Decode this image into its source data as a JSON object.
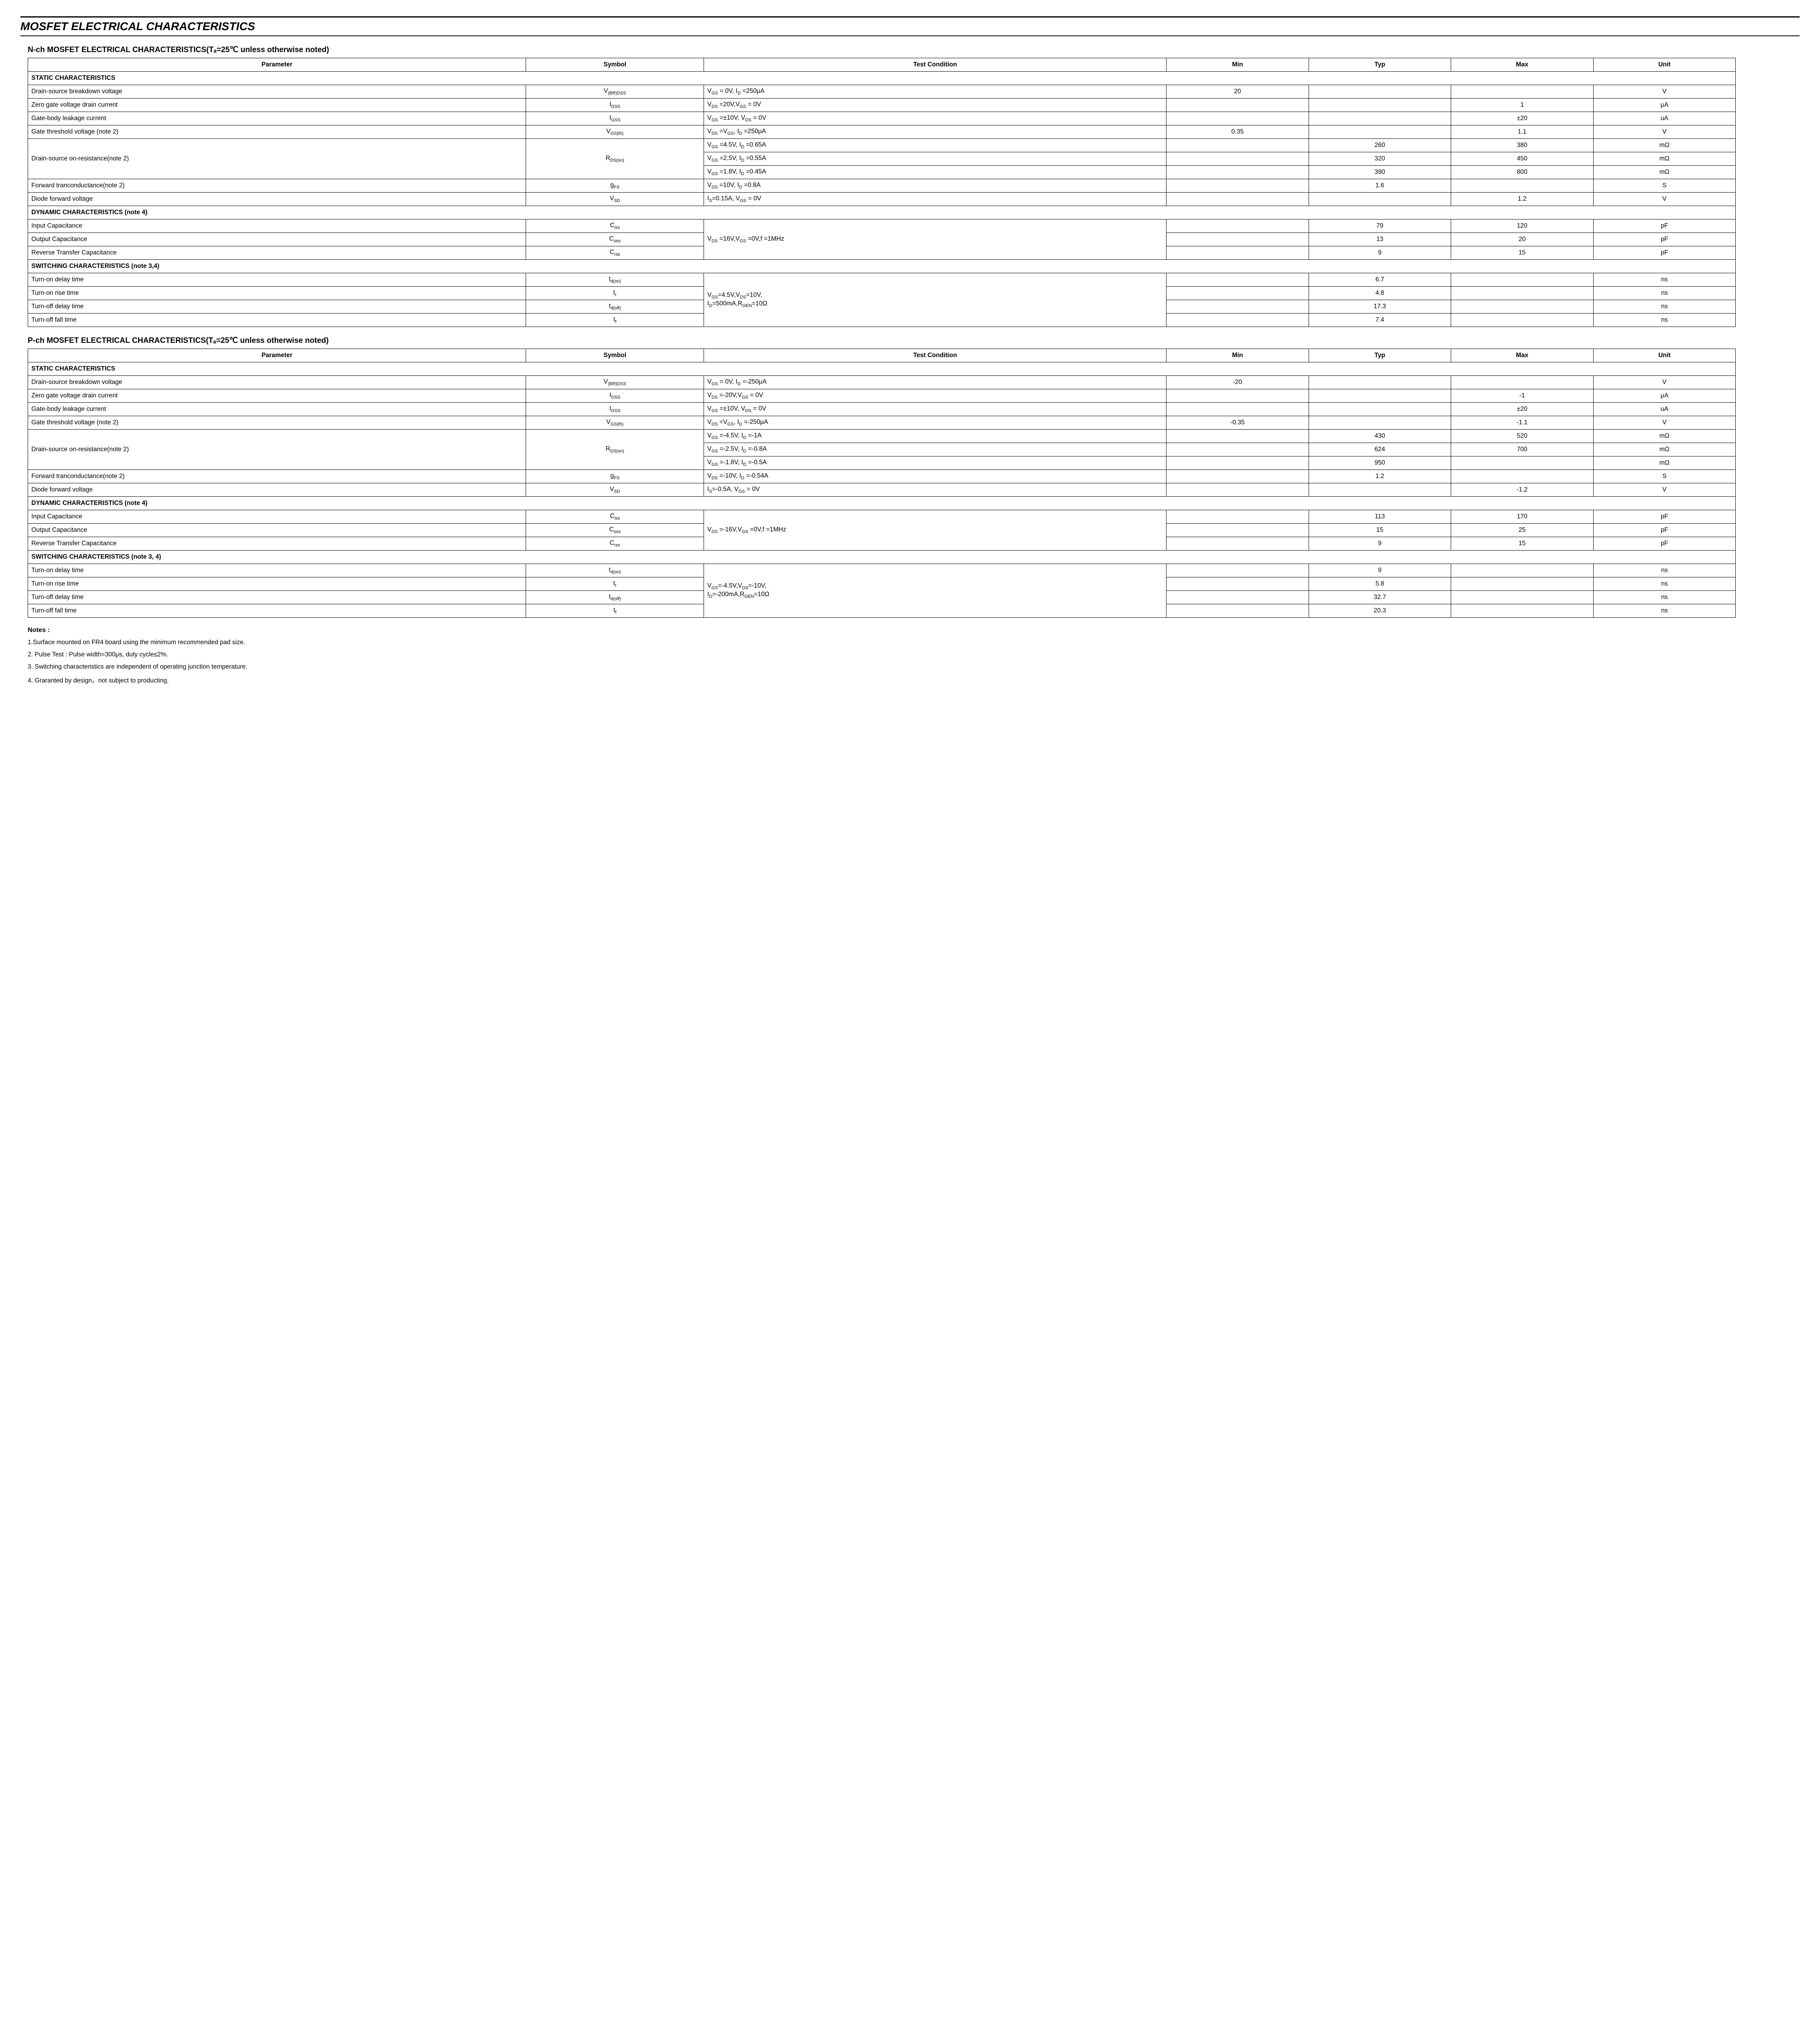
{
  "page_title": "MOSFET  ELECTRICAL CHARACTERISTICS",
  "nch_title": "N-ch MOSFET ELECTRICAL CHARACTERISTICS(Tₐ=25℃ unless otherwise noted)",
  "pch_title": "P-ch MOSFET ELECTRICAL CHARACTERISTICS(Tₐ=25℃ unless otherwise noted)",
  "headers": {
    "param": "Parameter",
    "symbol": "Symbol",
    "cond": "Test Condition",
    "min": "Min",
    "typ": "Typ",
    "max": "Max",
    "unit": "Unit"
  },
  "groups": {
    "static": "STATIC CHARACTERISTICS",
    "dynamic": "DYNAMIC CHARACTERISTICS (note 4)",
    "switching_n": "SWITCHING CHARACTERISTICS (note 3,4)",
    "switching_p": "SWITCHING CHARACTERISTICS (note 3, 4)"
  },
  "n": {
    "r1": {
      "p": "Drain-source breakdown voltage",
      "c": "V_GS = 0V, I_D =250μA",
      "min": "20",
      "typ": "",
      "max": "",
      "u": "V"
    },
    "r2": {
      "p": "Zero gate voltage drain current",
      "c": "V_DS =20V,V_GS = 0V",
      "min": "",
      "typ": "",
      "max": "1",
      "u": "μA"
    },
    "r3": {
      "p": "Gate-body leakage current",
      "c": "V_GS =±10V, V_DS = 0V",
      "min": "",
      "typ": "",
      "max": "±20",
      "u": "uA"
    },
    "r4": {
      "p": "Gate threshold voltage (note 2)",
      "c": "V_DS =V_GS, I_D =250μA",
      "min": "0.35",
      "typ": "",
      "max": "1.1",
      "u": "V"
    },
    "r5": {
      "p": "Drain-source on-resistance(note 2)",
      "c1": "V_GS =4.5V, I_D =0.65A",
      "c2": "V_GS =2.5V, I_D =0.55A",
      "c3": "V_GS =1.8V, I_D =0.45A",
      "t1": "260",
      "m1": "380",
      "t2": "320",
      "m2": "450",
      "t3": "390",
      "m3": "800",
      "u": "mΩ"
    },
    "r6": {
      "p": "Forward tranconductance(note 2)",
      "c": "V_DS =10V, I_D =0.8A",
      "min": "",
      "typ": "1.6",
      "max": "",
      "u": "S"
    },
    "r7": {
      "p": "Diode forward voltage",
      "c": "I_S=0.15A, V_GS = 0V",
      "min": "",
      "typ": "",
      "max": "1.2",
      "u": "V"
    },
    "d1": {
      "p": "Input Capacitance",
      "typ": "79",
      "max": "120",
      "u": "pF"
    },
    "d2": {
      "p": "Output Capacitance",
      "typ": "13",
      "max": "20",
      "u": "pF"
    },
    "d3": {
      "p": "Reverse Transfer Capacitance",
      "typ": "9",
      "max": "15",
      "u": "pF"
    },
    "dcond": "V_DS =16V,V_GS =0V,f =1MHz",
    "s1": {
      "p": "Turn-on delay time",
      "typ": "6.7",
      "u": "ns"
    },
    "s2": {
      "p": "Turn-on rise time",
      "typ": "4.8",
      "u": "ns"
    },
    "s3": {
      "p": "Turn-off delay time",
      "typ": "17.3",
      "u": "ns"
    },
    "s4": {
      "p": "Turn-off fall time",
      "typ": "7.4",
      "u": "ns"
    },
    "scond1": "V_GS=4.5V,V_DS=10V,",
    "scond2": "I_D=500mA,R_GEN=10Ω"
  },
  "p": {
    "r1": {
      "p": "Drain-source breakdown voltage",
      "c": "V_GS = 0V, I_D =-250μA",
      "min": "-20",
      "typ": "",
      "max": "",
      "u": "V"
    },
    "r2": {
      "p": "Zero gate voltage drain current",
      "c": "V_DS =-20V,V_GS = 0V",
      "min": "",
      "typ": "",
      "max": "-1",
      "u": "μA"
    },
    "r3": {
      "p": "Gate-body leakage current",
      "c": "V_GS =±10V, V_DS = 0V",
      "min": "",
      "typ": "",
      "max": "±20",
      "u": "uA"
    },
    "r4": {
      "p": "Gate threshold voltage    (note 2)",
      "c": "V_DS =V_GS, I_D =-250μA",
      "min": "-0.35",
      "typ": "",
      "max": "-1.1",
      "u": "V"
    },
    "r5": {
      "p": "Drain-source on-resistance(note 2)",
      "c1": "V_GS =-4.5V, I_D =-1A",
      "c2": "V_GS =-2.5V, I_D =-0.8A",
      "c3": "V_GS =-1.8V, I_D =-0.5A",
      "t1": "430",
      "m1": "520",
      "t2": "624",
      "m2": "700",
      "t3": "950",
      "m3": "",
      "u": "mΩ"
    },
    "r6": {
      "p": "Forward tranconductance(note 2)",
      "c": "V_DS =-10V, I_D =-0.54A",
      "min": "",
      "typ": "1.2",
      "max": "",
      "u": "S"
    },
    "r7": {
      "p": "Diode forward voltage",
      "c": "I_S=-0.5A, V_GS = 0V",
      "min": "",
      "typ": "",
      "max": "-1.2",
      "u": "V"
    },
    "d1": {
      "p": "Input Capacitance",
      "typ": "113",
      "max": "170",
      "u": "pF"
    },
    "d2": {
      "p": "Output Capacitance",
      "typ": "15",
      "max": "25",
      "u": "pF"
    },
    "d3": {
      "p": "Reverse Transfer Capacitance",
      "typ": "9",
      "max": "15",
      "u": "pF"
    },
    "dcond": "V_DS =-16V,V_GS =0V,f =1MHz",
    "s1": {
      "p": "Turn-on delay time",
      "typ": "9",
      "u": "ns"
    },
    "s2": {
      "p": "Turn-on rise time",
      "typ": "5.8",
      "u": "ns"
    },
    "s3": {
      "p": "Turn-off delay time",
      "typ": "32.7",
      "u": "ns"
    },
    "s4": {
      "p": "Turn-off fall time",
      "typ": "20.3",
      "u": "ns"
    },
    "scond1": "V_GS=-4.5V,V_DS=-10V,",
    "scond2": "I_D=-200mA,R_GEN=10Ω"
  },
  "notes_title": "Notes :",
  "notes": {
    "n1": "1.Surface mounted on FR4 board using the minimum recommended pad size.",
    "n2": "2. Pulse Test : Pulse width=300μs, duty cycle≤2%.",
    "n3": "3. Switching characteristics are independent of operating junction temperature.",
    "n4": "4. Graranted by design，not subject to producting."
  },
  "sym": {
    "vbrdss": "V_(BR)DSS",
    "idss": "I_DSS",
    "igss": "I_GSS",
    "vgsth": "V_GS(th)",
    "rdson": "R_DS(on)",
    "gfs": "g_FS",
    "vsd": "V_SD",
    "ciss": "C_iss",
    "coss": "C_oss",
    "crss": "C_rss",
    "tdon": "t_d(on)",
    "tr": "t_r",
    "tdoff": "t_d(off)",
    "tf": "t_f"
  }
}
